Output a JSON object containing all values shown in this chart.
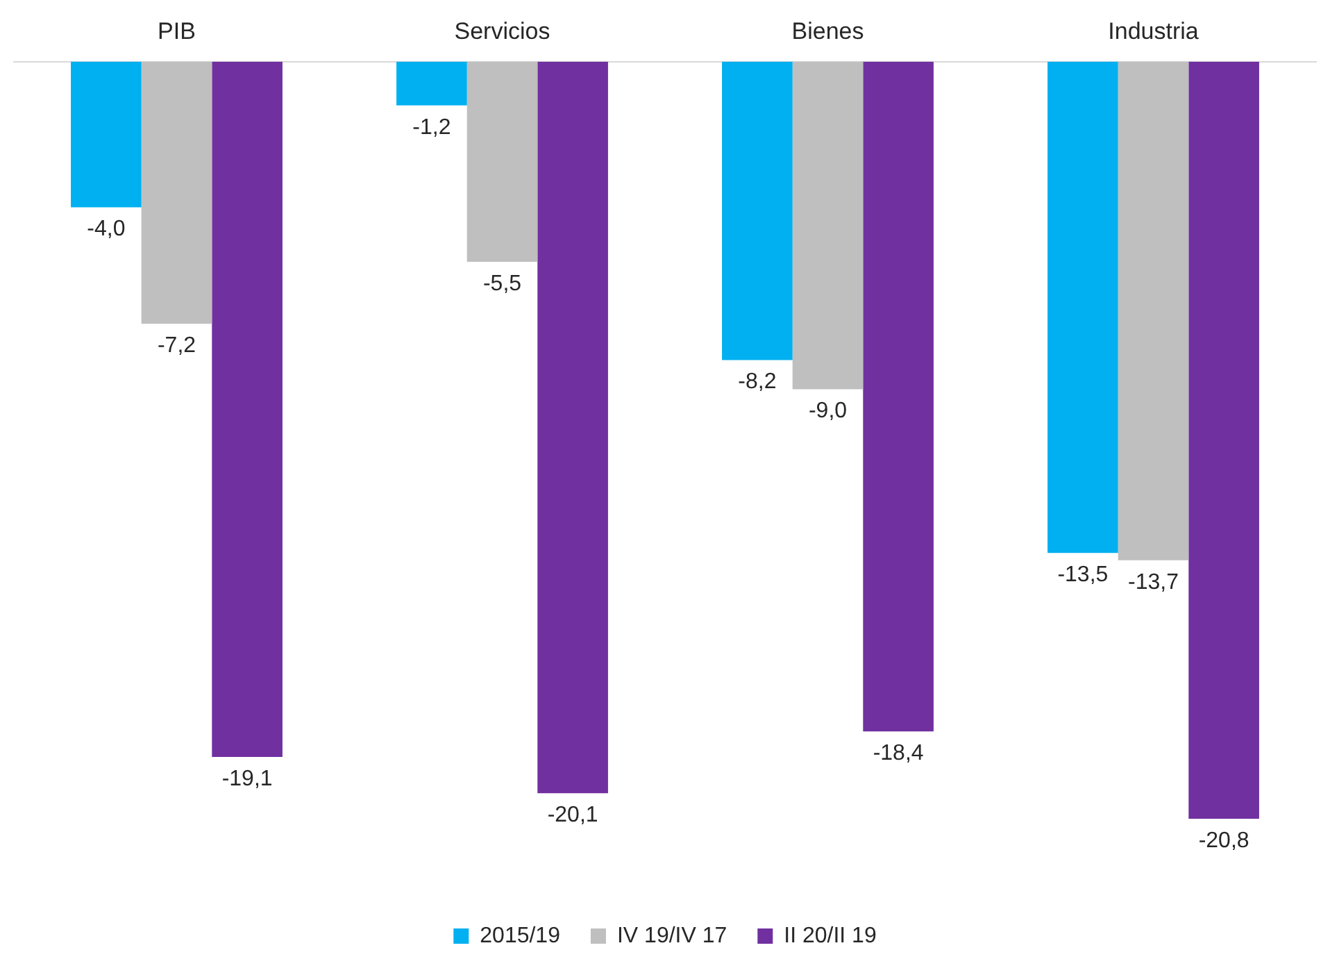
{
  "chart_data": {
    "type": "bar",
    "categories": [
      "PIB",
      "Servicios",
      "Bienes",
      "Industria"
    ],
    "series": [
      {
        "name": "2015/19",
        "color": "#00b0f0",
        "values": [
          -4.0,
          -1.2,
          -8.2,
          -13.5
        ],
        "value_labels": [
          "-4,0",
          "-1,2",
          "-8,2",
          "-13,5"
        ]
      },
      {
        "name": "IV 19/IV 17",
        "color": "#bfbfbf",
        "values": [
          -7.2,
          -5.5,
          -9.0,
          -13.7
        ],
        "value_labels": [
          "-7,2",
          "-5,5",
          "-9,0",
          "-13,7"
        ]
      },
      {
        "name": "II 20/II 19",
        "color": "#7030a0",
        "values": [
          -19.1,
          -20.1,
          -18.4,
          -20.8
        ],
        "value_labels": [
          "-19,1",
          "-20,1",
          "-18,4",
          "-20,8"
        ]
      }
    ],
    "legend": "bottom",
    "grid": false,
    "tick_labels": "x"
  }
}
